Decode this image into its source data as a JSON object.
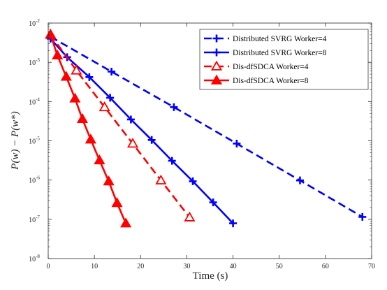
{
  "chart_data": {
    "type": "line",
    "title": "",
    "xlabel": "Time (s)",
    "ylabel": "P(w) − P(w*)",
    "xlim": [
      0,
      70
    ],
    "ylim_log10": [
      -8,
      -2
    ],
    "log_scale_y": true,
    "grid": false,
    "legend_position": "top-right",
    "x_ticks": [
      {
        "value": 0,
        "label": "0"
      },
      {
        "value": 10,
        "label": "10"
      },
      {
        "value": 20,
        "label": "20"
      },
      {
        "value": 30,
        "label": "30"
      },
      {
        "value": 40,
        "label": "40"
      },
      {
        "value": 50,
        "label": "50"
      },
      {
        "value": 60,
        "label": "60"
      },
      {
        "value": 70,
        "label": "70"
      }
    ],
    "y_ticks": [
      {
        "exp": -8,
        "mantissa": "10",
        "power": "-8"
      },
      {
        "exp": -7,
        "mantissa": "10",
        "power": "-7"
      },
      {
        "exp": -6,
        "mantissa": "10",
        "power": "-6"
      },
      {
        "exp": -5,
        "mantissa": "10",
        "power": "-5"
      },
      {
        "exp": -4,
        "mantissa": "10",
        "power": "-4"
      },
      {
        "exp": -3,
        "mantissa": "10",
        "power": "-3"
      },
      {
        "exp": -2,
        "mantissa": "10",
        "power": "-2"
      }
    ],
    "series": [
      {
        "name": "Distributed SVRG Worker=4",
        "color": "#0000ff",
        "dash": "dashed",
        "marker": "plus",
        "x": [
          0.5,
          13.7,
          27.2,
          40.8,
          54.5,
          68.0
        ],
        "y": [
          0.0045,
          0.00058,
          7.2e-05,
          8.5e-06,
          9.8e-07,
          1.15e-07
        ]
      },
      {
        "name": "Distributed SVRG Worker=8",
        "color": "#0000ff",
        "dash": "solid",
        "marker": "plus",
        "x": [
          0.5,
          4.1,
          8.9,
          13.4,
          17.9,
          22.4,
          26.8,
          31.3,
          35.7,
          40.0
        ],
        "y": [
          0.004,
          0.00135,
          0.00042,
          0.000125,
          3.5e-05,
          1.05e-05,
          3.1e-06,
          9.3e-07,
          2.7e-07,
          7.9e-08
        ]
      },
      {
        "name": "Dis-dfSDCA Worker=4",
        "color": "#ff0000",
        "dash": "dashed",
        "marker": "triangle-open",
        "x": [
          0.5,
          6.1,
          12.2,
          18.3,
          24.4,
          30.6
        ],
        "y": [
          0.0051,
          0.00062,
          7.2e-05,
          8.5e-06,
          9.8e-07,
          1.12e-07
        ]
      },
      {
        "name": "Dis-dfSDCA Worker=8",
        "color": "#ff0000",
        "dash": "solid",
        "marker": "triangle-filled",
        "x": [
          0.5,
          2.0,
          3.9,
          5.8,
          7.4,
          9.2,
          11.1,
          13.1,
          14.9,
          16.8
        ],
        "y": [
          0.0051,
          0.0015,
          0.00043,
          0.00012,
          3.6e-05,
          1.08e-05,
          3.2e-06,
          9.3e-07,
          2.6e-07,
          7.9e-08
        ]
      }
    ]
  }
}
